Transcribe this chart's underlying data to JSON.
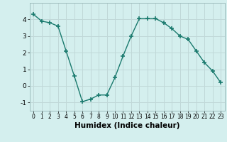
{
  "x": [
    0,
    1,
    2,
    3,
    4,
    5,
    6,
    7,
    8,
    9,
    10,
    11,
    12,
    13,
    14,
    15,
    16,
    17,
    18,
    19,
    20,
    21,
    22,
    23
  ],
  "y": [
    4.3,
    3.9,
    3.8,
    3.6,
    2.1,
    0.6,
    -0.95,
    -0.8,
    -0.55,
    -0.55,
    0.5,
    1.8,
    3.0,
    4.05,
    4.05,
    4.05,
    3.8,
    3.45,
    3.0,
    2.8,
    2.1,
    1.4,
    0.9,
    0.2
  ],
  "xlabel": "Humidex (Indice chaleur)",
  "ylim": [
    -1.5,
    5.0
  ],
  "xlim": [
    -0.5,
    23.5
  ],
  "bg_color": "#d4efee",
  "grid_color": "#c0d8d8",
  "line_color": "#1a7a6e",
  "marker_color": "#1a7a6e",
  "yticks": [
    -1,
    0,
    1,
    2,
    3,
    4
  ],
  "xticks": [
    0,
    1,
    2,
    3,
    4,
    5,
    6,
    7,
    8,
    9,
    10,
    11,
    12,
    13,
    14,
    15,
    16,
    17,
    18,
    19,
    20,
    21,
    22,
    23
  ],
  "spine_color": "#9cbcbc",
  "xlabel_fontsize": 7.5,
  "xlabel_fontweight": "bold",
  "tick_fontsize": 5.5,
  "ytick_fontsize": 6.5
}
